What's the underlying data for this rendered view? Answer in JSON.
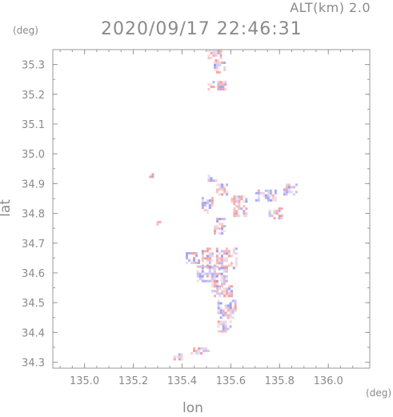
{
  "header": {
    "altitude": "ALT(km) 2.0",
    "timestamp": "2020/09/17 22:46:31"
  },
  "chart_data": {
    "type": "heatmap",
    "title": "2020/09/17 22:46:31",
    "subtitle": "ALT(km) 2.0",
    "xlabel": "lon",
    "ylabel": "lat",
    "x_unit": "(deg)",
    "y_unit": "(deg)",
    "xlim": [
      134.87,
      136.17
    ],
    "ylim": [
      34.28,
      35.35
    ],
    "x_ticks": [
      {
        "value": 135.0,
        "label": "135.0"
      },
      {
        "value": 135.2,
        "label": "135.2"
      },
      {
        "value": 135.4,
        "label": "135.4"
      },
      {
        "value": 135.6,
        "label": "135.6"
      },
      {
        "value": 135.8,
        "label": "135.8"
      },
      {
        "value": 136.0,
        "label": "136.0"
      }
    ],
    "y_ticks": [
      {
        "value": 34.3,
        "label": "34.3"
      },
      {
        "value": 34.4,
        "label": "34.4"
      },
      {
        "value": 34.5,
        "label": "34.5"
      },
      {
        "value": 34.6,
        "label": "34.6"
      },
      {
        "value": 34.7,
        "label": "34.7"
      },
      {
        "value": 34.8,
        "label": "34.8"
      },
      {
        "value": 34.9,
        "label": "34.9"
      },
      {
        "value": 35.0,
        "label": "35.0"
      },
      {
        "value": 35.1,
        "label": "35.1"
      },
      {
        "value": 35.2,
        "label": "35.2"
      },
      {
        "value": 35.3,
        "label": "35.3"
      }
    ],
    "colors": {
      "positive": "#f08a8a",
      "negative": "#8a8af0",
      "axis": "#999999"
    },
    "regions": [
      {
        "lon": 135.53,
        "lat": 35.33,
        "dlon": 0.05,
        "dlat": 0.04,
        "sign": 1
      },
      {
        "lon": 135.55,
        "lat": 35.29,
        "dlon": 0.04,
        "dlat": 0.04,
        "sign": 1
      },
      {
        "lon": 135.54,
        "lat": 35.23,
        "dlon": 0.07,
        "dlat": 0.03,
        "sign": 1
      },
      {
        "lon": 135.52,
        "lat": 34.92,
        "dlon": 0.03,
        "dlat": 0.02,
        "sign": -1
      },
      {
        "lon": 135.56,
        "lat": 34.88,
        "dlon": 0.04,
        "dlat": 0.04,
        "sign": 1
      },
      {
        "lon": 135.5,
        "lat": 34.83,
        "dlon": 0.04,
        "dlat": 0.05,
        "sign": -1
      },
      {
        "lon": 135.63,
        "lat": 34.82,
        "dlon": 0.06,
        "dlat": 0.08,
        "sign": 1
      },
      {
        "lon": 135.74,
        "lat": 34.86,
        "dlon": 0.08,
        "dlat": 0.04,
        "sign": -1
      },
      {
        "lon": 135.78,
        "lat": 34.8,
        "dlon": 0.05,
        "dlat": 0.04,
        "sign": 1
      },
      {
        "lon": 135.84,
        "lat": 34.88,
        "dlon": 0.05,
        "dlat": 0.04,
        "sign": -1
      },
      {
        "lon": 135.55,
        "lat": 34.76,
        "dlon": 0.04,
        "dlat": 0.05,
        "sign": 1
      },
      {
        "lon": 135.44,
        "lat": 34.65,
        "dlon": 0.05,
        "dlat": 0.04,
        "sign": -1
      },
      {
        "lon": 135.55,
        "lat": 34.65,
        "dlon": 0.14,
        "dlat": 0.07,
        "sign": 1
      },
      {
        "lon": 135.52,
        "lat": 34.6,
        "dlon": 0.12,
        "dlat": 0.05,
        "sign": -1
      },
      {
        "lon": 135.56,
        "lat": 34.55,
        "dlon": 0.08,
        "dlat": 0.05,
        "sign": 1
      },
      {
        "lon": 135.58,
        "lat": 34.48,
        "dlon": 0.07,
        "dlat": 0.06,
        "sign": -1
      },
      {
        "lon": 135.57,
        "lat": 34.42,
        "dlon": 0.05,
        "dlat": 0.04,
        "sign": 1
      },
      {
        "lon": 135.47,
        "lat": 34.34,
        "dlon": 0.07,
        "dlat": 0.02,
        "sign": -1
      },
      {
        "lon": 135.38,
        "lat": 34.32,
        "dlon": 0.03,
        "dlat": 0.02,
        "sign": 1
      },
      {
        "lon": 135.3,
        "lat": 34.77,
        "dlon": 0.01,
        "dlat": 0.01,
        "sign": 1
      },
      {
        "lon": 135.27,
        "lat": 34.93,
        "dlon": 0.01,
        "dlat": 0.01,
        "sign": -1
      }
    ]
  }
}
